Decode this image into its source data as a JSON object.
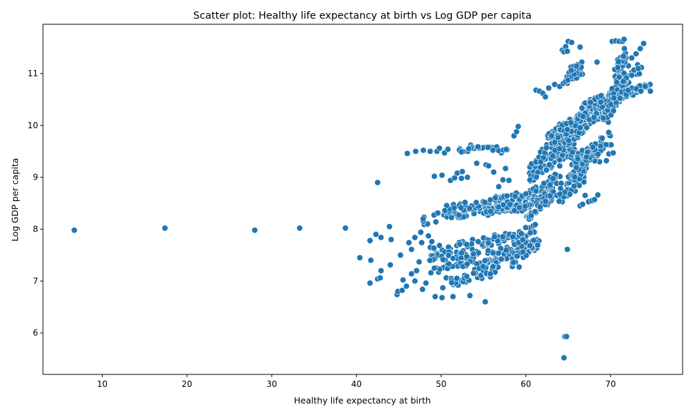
{
  "chart_data": {
    "type": "scatter",
    "title": "Scatter plot: Healthy life expectancy at birth vs Log GDP per capita",
    "xlabel": "Healthy life expectancy at birth",
    "ylabel": "Log GDP per capita",
    "xlim": [
      3.0,
      78.5
    ],
    "ylim": [
      5.2,
      11.95
    ],
    "xticks": [
      10,
      20,
      30,
      40,
      50,
      60,
      70
    ],
    "yticks": [
      6,
      7,
      8,
      9,
      10,
      11
    ],
    "grid": false,
    "point_color": "#1f77b4",
    "point_edge_color": "#ffffff",
    "points": [
      [
        6.7,
        7.98
      ],
      [
        17.4,
        8.02
      ],
      [
        28.0,
        7.98
      ],
      [
        33.3,
        8.02
      ],
      [
        38.7,
        8.02
      ],
      [
        42.5,
        8.9
      ],
      [
        40.4,
        7.45
      ],
      [
        41.6,
        7.78
      ],
      [
        41.7,
        7.4
      ],
      [
        41.6,
        6.96
      ],
      [
        42.3,
        7.9
      ],
      [
        42.5,
        7.04
      ],
      [
        42.9,
        7.84
      ],
      [
        42.9,
        7.2
      ],
      [
        42.8,
        7.06
      ],
      [
        43.9,
        8.05
      ],
      [
        44.1,
        7.8
      ],
      [
        44.0,
        7.31
      ],
      [
        44.8,
        6.74
      ],
      [
        44.9,
        6.8
      ],
      [
        45.2,
        7.5
      ],
      [
        45.4,
        6.82
      ],
      [
        45.5,
        7.02
      ],
      [
        45.9,
        6.9
      ],
      [
        46.0,
        9.46
      ],
      [
        46.2,
        7.74
      ],
      [
        46.5,
        7.14
      ],
      [
        46.5,
        7.61
      ],
      [
        46.9,
        7.84
      ],
      [
        47.0,
        9.5
      ],
      [
        46.9,
        7.0
      ],
      [
        47.1,
        7.2
      ],
      [
        47.4,
        7.37
      ],
      [
        47.6,
        7.94
      ],
      [
        47.7,
        7.74
      ],
      [
        47.8,
        6.84
      ],
      [
        47.9,
        9.52
      ],
      [
        48.0,
        8.09
      ],
      [
        48.2,
        6.96
      ],
      [
        48.4,
        8.1
      ],
      [
        48.5,
        7.87
      ],
      [
        48.7,
        9.5
      ],
      [
        48.8,
        7.16
      ],
      [
        48.9,
        7.76
      ],
      [
        49.2,
        9.02
      ],
      [
        49.3,
        6.7
      ],
      [
        49.5,
        9.5
      ],
      [
        49.7,
        7.17
      ],
      [
        49.8,
        9.56
      ],
      [
        50.1,
        9.04
      ],
      [
        50.1,
        6.68
      ],
      [
        50.2,
        6.87
      ],
      [
        50.4,
        9.47
      ],
      [
        50.6,
        7.06
      ],
      [
        50.8,
        9.54
      ],
      [
        51.1,
        8.94
      ],
      [
        51.4,
        6.7
      ],
      [
        51.6,
        8.99
      ],
      [
        51.9,
        9.08
      ],
      [
        52.0,
        6.92
      ],
      [
        52.2,
        9.55
      ],
      [
        52.5,
        9.11
      ],
      [
        52.4,
        8.98
      ],
      [
        52.9,
        6.98
      ],
      [
        53.1,
        9.0
      ],
      [
        53.4,
        6.72
      ],
      [
        53.5,
        9.62
      ],
      [
        54.2,
        9.27
      ],
      [
        54.5,
        8.41
      ],
      [
        54.8,
        7.05
      ],
      [
        55.2,
        6.6
      ],
      [
        55.3,
        9.24
      ],
      [
        55.6,
        9.22
      ],
      [
        55.8,
        7.08
      ],
      [
        56.2,
        9.1
      ],
      [
        56.8,
        8.82
      ],
      [
        57.1,
        9.47
      ],
      [
        57.3,
        8.95
      ],
      [
        57.6,
        9.17
      ],
      [
        58.0,
        8.94
      ],
      [
        58.4,
        7.28
      ],
      [
        58.6,
        9.8
      ],
      [
        58.9,
        9.88
      ],
      [
        59.2,
        7.27
      ],
      [
        59.1,
        9.98
      ],
      [
        59.7,
        7.8
      ],
      [
        60.4,
        7.91
      ],
      [
        61.3,
        7.8
      ],
      [
        61.2,
        10.68
      ],
      [
        61.6,
        10.66
      ],
      [
        62.0,
        10.62
      ],
      [
        62.3,
        10.55
      ],
      [
        62.7,
        10.72
      ],
      [
        63.4,
        10.79
      ],
      [
        64.0,
        10.75
      ],
      [
        64.3,
        11.45
      ],
      [
        64.5,
        11.42
      ],
      [
        64.7,
        11.52
      ],
      [
        64.9,
        11.43
      ],
      [
        65.0,
        11.62
      ],
      [
        65.4,
        11.6
      ],
      [
        66.1,
        11.1
      ],
      [
        66.4,
        11.51
      ],
      [
        66.6,
        11.22
      ],
      [
        64.5,
        5.52
      ],
      [
        64.6,
        5.93
      ],
      [
        64.8,
        5.93
      ],
      [
        64.9,
        7.61
      ],
      [
        66.4,
        8.45
      ],
      [
        66.7,
        8.48
      ],
      [
        67.0,
        8.65
      ],
      [
        67.4,
        8.53
      ],
      [
        67.8,
        8.55
      ],
      [
        68.1,
        8.57
      ],
      [
        68.5,
        8.66
      ],
      [
        68.4,
        11.22
      ],
      [
        70.2,
        11.62
      ],
      [
        70.6,
        11.63
      ],
      [
        71.0,
        11.62
      ],
      [
        71.4,
        11.62
      ],
      [
        71.6,
        11.66
      ],
      [
        72.5,
        11.3
      ],
      [
        73.0,
        11.38
      ],
      [
        73.5,
        11.48
      ],
      [
        73.9,
        11.58
      ],
      [
        74.3,
        10.74
      ],
      [
        74.7,
        10.66
      ],
      [
        72.1,
        11.15
      ],
      [
        73.2,
        11.17
      ],
      [
        69.8,
        9.45
      ],
      [
        70.3,
        9.47
      ],
      [
        68.7,
        9.3
      ],
      [
        69.5,
        9.32
      ]
    ],
    "bands": [
      {
        "x0": 48.0,
        "y0": 8.1,
        "x1": 60.0,
        "y1": 8.55,
        "n": 70
      },
      {
        "x0": 49.0,
        "y0": 7.45,
        "x1": 58.0,
        "y1": 7.95,
        "n": 60
      },
      {
        "x0": 48.5,
        "y0": 7.35,
        "x1": 60.5,
        "y1": 7.7,
        "n": 60
      },
      {
        "x0": 49.5,
        "y0": 7.2,
        "x1": 57.5,
        "y1": 7.45,
        "n": 45
      },
      {
        "x0": 50.0,
        "y0": 8.3,
        "x1": 61.0,
        "y1": 8.7,
        "n": 50
      },
      {
        "x0": 51.0,
        "y0": 6.9,
        "x1": 56.5,
        "y1": 7.35,
        "n": 35
      },
      {
        "x0": 54.0,
        "y0": 9.55,
        "x1": 56.5,
        "y1": 9.6,
        "n": 14
      },
      {
        "x0": 56.0,
        "y0": 9.5,
        "x1": 58.0,
        "y1": 9.55,
        "n": 12
      },
      {
        "x0": 55.0,
        "y0": 8.3,
        "x1": 60.0,
        "y1": 8.55,
        "n": 30
      },
      {
        "x0": 58.5,
        "y0": 7.3,
        "x1": 61.5,
        "y1": 7.9,
        "n": 35
      },
      {
        "x0": 58.5,
        "y0": 7.7,
        "x1": 61.0,
        "y1": 8.1,
        "n": 30
      },
      {
        "x0": 59.0,
        "y0": 8.3,
        "x1": 64.0,
        "y1": 9.1,
        "n": 70
      },
      {
        "x0": 60.0,
        "y0": 8.1,
        "x1": 63.0,
        "y1": 8.9,
        "n": 60
      },
      {
        "x0": 60.5,
        "y0": 8.9,
        "x1": 66.0,
        "y1": 9.8,
        "n": 80
      },
      {
        "x0": 61.5,
        "y0": 9.2,
        "x1": 65.0,
        "y1": 9.9,
        "n": 70
      },
      {
        "x0": 62.5,
        "y0": 9.6,
        "x1": 67.5,
        "y1": 10.3,
        "n": 80
      },
      {
        "x0": 63.5,
        "y0": 8.4,
        "x1": 67.0,
        "y1": 9.3,
        "n": 45
      },
      {
        "x0": 64.0,
        "y0": 9.5,
        "x1": 68.0,
        "y1": 10.5,
        "n": 80
      },
      {
        "x0": 65.0,
        "y0": 8.9,
        "x1": 69.0,
        "y1": 9.8,
        "n": 60
      },
      {
        "x0": 66.0,
        "y0": 9.8,
        "x1": 70.0,
        "y1": 10.6,
        "n": 70
      },
      {
        "x0": 67.0,
        "y0": 9.2,
        "x1": 70.0,
        "y1": 9.9,
        "n": 45
      },
      {
        "x0": 68.0,
        "y0": 10.1,
        "x1": 72.0,
        "y1": 10.9,
        "n": 70
      },
      {
        "x0": 69.0,
        "y0": 9.9,
        "x1": 71.5,
        "y1": 11.0,
        "n": 40
      },
      {
        "x0": 70.5,
        "y0": 10.5,
        "x1": 74.5,
        "y1": 10.8,
        "n": 45
      },
      {
        "x0": 70.5,
        "y0": 10.9,
        "x1": 72.0,
        "y1": 11.55,
        "n": 25
      },
      {
        "x0": 71.0,
        "y0": 10.8,
        "x1": 73.5,
        "y1": 11.15,
        "n": 30
      },
      {
        "x0": 66.5,
        "y0": 10.3,
        "x1": 69.0,
        "y1": 10.6,
        "n": 25
      },
      {
        "x0": 64.5,
        "y0": 10.75,
        "x1": 66.5,
        "y1": 11.15,
        "n": 25
      },
      {
        "x0": 65.5,
        "y0": 11.05,
        "x1": 66.3,
        "y1": 11.2,
        "n": 10
      },
      {
        "x0": 56.0,
        "y0": 8.55,
        "x1": 59.0,
        "y1": 8.7,
        "n": 15
      },
      {
        "x0": 52.0,
        "y0": 9.45,
        "x1": 54.0,
        "y1": 9.6,
        "n": 8
      }
    ]
  }
}
